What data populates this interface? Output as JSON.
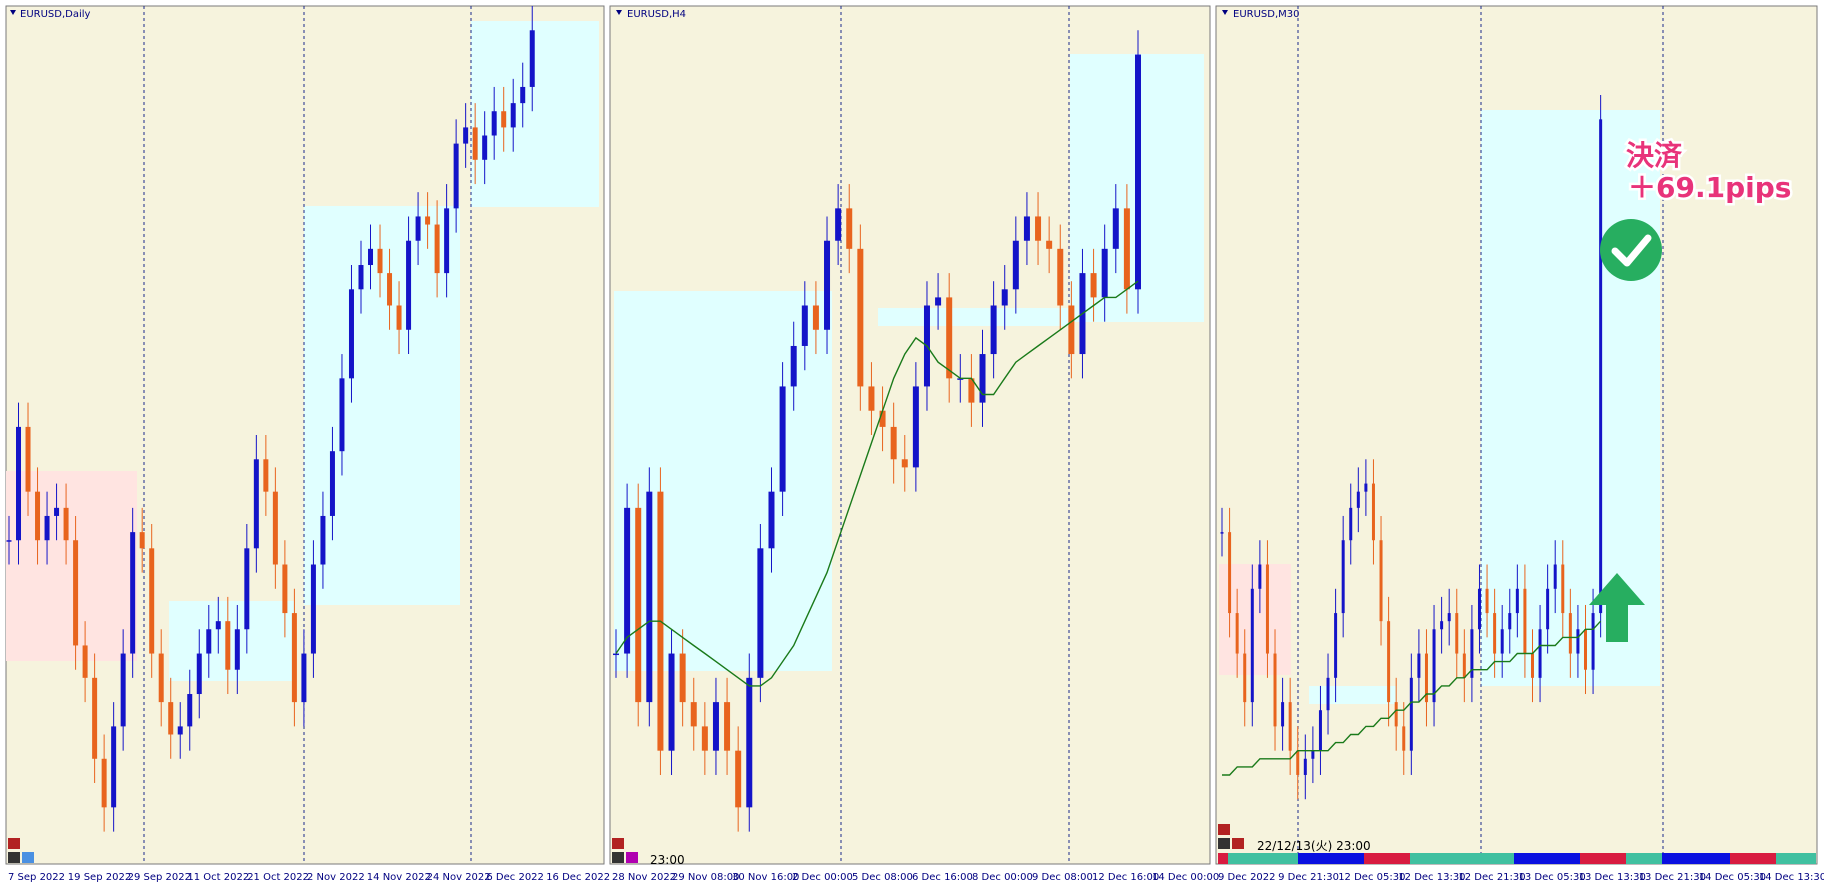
{
  "panels": [
    {
      "title": "EURUSD,Daily",
      "xlabels": [
        "7 Sep 2022",
        "19 Sep 2022",
        "29 Sep 2022",
        "11 Oct 2022",
        "21 Oct 2022",
        "2 Nov 2022",
        "14 Nov 2022",
        "24 Nov 2022",
        "6 Dec 2022",
        "16 Dec 2022"
      ],
      "ylim": [
        0,
        106
      ],
      "closes": [
        40,
        54,
        46,
        40,
        43,
        44,
        40,
        27,
        23,
        13,
        7,
        17,
        26,
        41,
        39,
        26,
        20,
        16,
        17,
        21,
        26,
        29,
        30,
        24,
        29,
        39,
        50,
        46,
        37,
        31,
        20,
        26,
        37,
        43,
        51,
        60,
        71,
        74,
        76,
        73,
        69,
        66,
        77,
        80,
        79,
        73,
        81,
        89,
        91,
        87,
        90,
        93,
        91,
        94,
        96,
        103
      ]
    },
    {
      "title": "EURUSD,H4",
      "xlabels": [
        "28 Nov 2022",
        "29 Nov 08:00",
        "30 Nov 16:00",
        "2 Dec 00:00",
        "5 Dec 08:00",
        "6 Dec 16:00",
        "8 Dec 00:00",
        "9 Dec 08:00",
        "12 Dec 16:00",
        "14 Dec 00:00"
      ],
      "time": "23:00",
      "ylim": [
        0,
        106
      ],
      "closes": [
        26,
        44,
        20,
        46,
        14,
        26,
        20,
        17,
        14,
        20,
        14,
        7,
        23,
        39,
        46,
        59,
        64,
        69,
        66,
        77,
        81,
        76,
        59,
        56,
        54,
        50,
        49,
        59,
        69,
        70,
        60,
        60,
        57,
        63,
        69,
        71,
        77,
        80,
        77,
        76,
        69,
        63,
        73,
        70,
        76,
        81,
        71,
        100
      ],
      "ma": [
        26,
        28,
        29,
        30,
        30,
        29,
        28,
        27,
        26,
        25,
        24,
        23,
        22,
        22,
        23,
        25,
        27,
        30,
        33,
        36,
        40,
        44,
        48,
        52,
        56,
        60,
        63,
        65,
        64,
        62,
        61,
        60,
        60,
        58,
        58,
        60,
        62,
        63,
        64,
        65,
        66,
        67,
        68,
        69,
        70,
        70,
        71,
        72
      ]
    },
    {
      "title": "EURUSD,M30",
      "xlabels": [
        "9 Dec 2022",
        "9 Dec 21:30",
        "12 Dec 05:30",
        "12 Dec 13:30",
        "12 Dec 21:30",
        "13 Dec 05:30",
        "13 Dec 13:30",
        "13 Dec 21:30",
        "14 Dec 05:30",
        "14 Dec 13:30"
      ],
      "time": "22/12/13(火) 23:00",
      "ylim": [
        0,
        106
      ],
      "closes": [
        41,
        31,
        26,
        20,
        34,
        37,
        26,
        17,
        20,
        14,
        11,
        13,
        14,
        19,
        23,
        31,
        40,
        44,
        46,
        47,
        40,
        30,
        20,
        17,
        14,
        23,
        26,
        20,
        29,
        30,
        31,
        26,
        23,
        29,
        34,
        31,
        26,
        29,
        31,
        34,
        26,
        23,
        29,
        34,
        37,
        31,
        26,
        29,
        24,
        31,
        92
      ],
      "ma": [
        11,
        11,
        12,
        12,
        12,
        13,
        13,
        13,
        13,
        13,
        14,
        14,
        14,
        14,
        14,
        15,
        15,
        16,
        16,
        17,
        17,
        18,
        18,
        19,
        19,
        20,
        20,
        21,
        21,
        22,
        22,
        23,
        23,
        24,
        24,
        24,
        25,
        25,
        25,
        26,
        26,
        26,
        27,
        27,
        27,
        28,
        28,
        28,
        29,
        29,
        30
      ]
    }
  ],
  "annotation": {
    "line1": "決済",
    "line2": "＋69.1pips"
  }
}
